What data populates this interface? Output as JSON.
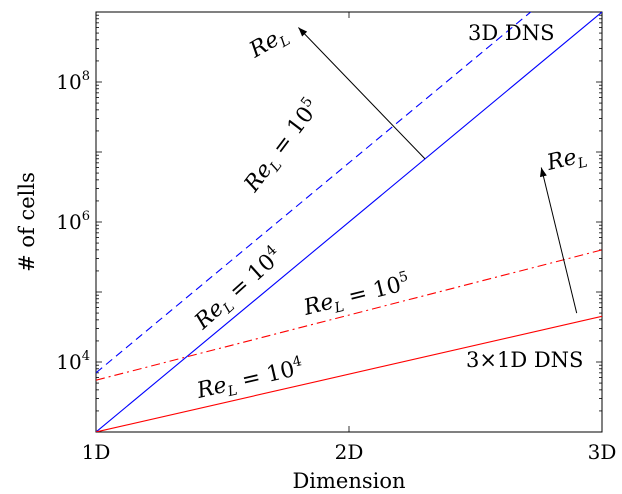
{
  "chart_data": {
    "type": "line",
    "xlabel": "Dimension",
    "ylabel": "# of cells",
    "x_categories": [
      "1D",
      "2D",
      "3D"
    ],
    "y_scale": "log",
    "ylim": [
      1000,
      1000000000
    ],
    "y_ticks": [
      {
        "value": 10000,
        "base": "10",
        "exp": "4"
      },
      {
        "value": 1000000,
        "base": "10",
        "exp": "6"
      },
      {
        "value": 100000000,
        "base": "10",
        "exp": "8"
      }
    ],
    "series": [
      {
        "name": "3D DNS, Re_L = 10^4",
        "color": "#0000ff",
        "style": "solid",
        "x": [
          1,
          3
        ],
        "y": [
          1000,
          1000000000
        ]
      },
      {
        "name": "3D DNS, Re_L = 10^5",
        "color": "#0000ff",
        "style": "dashed",
        "x": [
          1,
          3
        ],
        "y": [
          7000,
          7000000000
        ]
      },
      {
        "name": "3x1D DNS, Re_L = 10^4",
        "color": "#ff0000",
        "style": "solid",
        "x": [
          1,
          3
        ],
        "y": [
          1000,
          45000
        ]
      },
      {
        "name": "3x1D DNS, Re_L = 10^5",
        "color": "#ff0000",
        "style": "dashdot",
        "x": [
          1,
          3
        ],
        "y": [
          5500,
          400000
        ]
      }
    ],
    "annotations": {
      "blue_group": "3D DNS",
      "red_group": "3×1D DNS",
      "blue_solid_label": {
        "prefix": "Re",
        "sub": "L",
        "eq": " = 10",
        "exp": "4"
      },
      "blue_dashed_label": {
        "prefix": "Re",
        "sub": "L",
        "eq": " = 10",
        "exp": "5"
      },
      "red_solid_label": {
        "prefix": "Re",
        "sub": "L",
        "eq": " = 10",
        "exp": "4"
      },
      "red_dashed_label": {
        "prefix": "Re",
        "sub": "L",
        "eq": " = 10",
        "exp": "5"
      },
      "arrow_label": {
        "prefix": "Re",
        "sub": "L"
      }
    },
    "grid": false,
    "legend": "none"
  }
}
